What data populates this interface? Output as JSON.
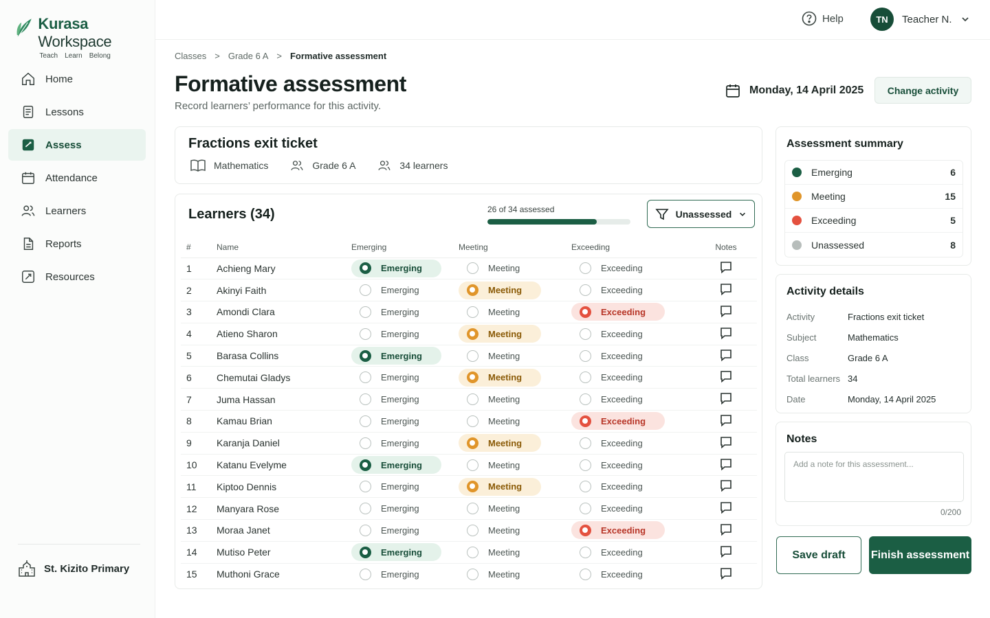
{
  "app": {
    "brand_bold": "Kurasa",
    "brand_light": " Workspace",
    "taglines": [
      "Teach",
      "Learn",
      "Belong"
    ]
  },
  "sidebar": {
    "items": [
      {
        "label": "Home",
        "icon": "home-icon"
      },
      {
        "label": "Lessons",
        "icon": "lessons-icon"
      },
      {
        "label": "Assess",
        "icon": "assess-icon",
        "active": true
      },
      {
        "label": "Attendance",
        "icon": "calendar-icon"
      },
      {
        "label": "Learners",
        "icon": "users-icon"
      },
      {
        "label": "Reports",
        "icon": "report-icon"
      },
      {
        "label": "Resources",
        "icon": "resources-icon"
      }
    ],
    "school": "St. Kizito Primary"
  },
  "topbar": {
    "help": "Help",
    "avatar_initials": "TN",
    "user_name": "Teacher N."
  },
  "breadcrumb": [
    "Classes",
    "Grade 6 A",
    "Formative assessment"
  ],
  "header": {
    "title": "Formative assessment",
    "subtitle": "Record learners’ performance for this activity.",
    "date": "Monday, 14 April 2025",
    "change_button": "Change activity"
  },
  "activity": {
    "title": "Fractions exit ticket",
    "subject": "Mathematics",
    "class": "Grade 6 A",
    "learners": "34 learners"
  },
  "learners_panel": {
    "title": "Learners (34)",
    "progress_text": "26 of 34 assessed",
    "progress_fraction": 0.7647,
    "filter_label": "Unassessed",
    "columns": [
      "#",
      "Name",
      "Emerging",
      "Meeting",
      "Exceeding",
      "Notes"
    ],
    "option_labels": {
      "emerging": "Emerging",
      "meeting": "Meeting",
      "exceeding": "Exceeding"
    },
    "rows": [
      {
        "n": "1",
        "name": "Achieng Mary",
        "level": "emerging"
      },
      {
        "n": "2",
        "name": "Akinyi Faith",
        "level": "meeting"
      },
      {
        "n": "3",
        "name": "Amondi Clara",
        "level": "exceeding"
      },
      {
        "n": "4",
        "name": "Atieno Sharon",
        "level": "meeting"
      },
      {
        "n": "5",
        "name": "Barasa Collins",
        "level": "emerging"
      },
      {
        "n": "6",
        "name": "Chemutai Gladys",
        "level": "meeting"
      },
      {
        "n": "7",
        "name": "Juma Hassan",
        "level": ""
      },
      {
        "n": "8",
        "name": "Kamau Brian",
        "level": "exceeding"
      },
      {
        "n": "9",
        "name": "Karanja Daniel",
        "level": "meeting"
      },
      {
        "n": "10",
        "name": "Katanu Evelyme",
        "level": "emerging"
      },
      {
        "n": "11",
        "name": "Kiptoo Dennis",
        "level": "meeting"
      },
      {
        "n": "12",
        "name": "Manyara Rose",
        "level": ""
      },
      {
        "n": "13",
        "name": "Moraa Janet",
        "level": "exceeding"
      },
      {
        "n": "14",
        "name": "Mutiso Peter",
        "level": "emerging"
      },
      {
        "n": "15",
        "name": "Muthoni Grace",
        "level": ""
      }
    ]
  },
  "summary": {
    "title": "Assessment summary",
    "items": [
      {
        "label": "Emerging",
        "value": "6",
        "color": "#1b5e44"
      },
      {
        "label": "Meeting",
        "value": "15",
        "color": "#e0952a"
      },
      {
        "label": "Exceeding",
        "value": "5",
        "color": "#e4513f"
      },
      {
        "label": "Unassessed",
        "value": "8",
        "color": "#b7bdbb"
      }
    ]
  },
  "details": {
    "title": "Activity details",
    "rows": [
      {
        "k": "Activity",
        "v": "Fractions exit ticket"
      },
      {
        "k": "Subject",
        "v": "Mathematics"
      },
      {
        "k": "Class",
        "v": "Grade 6 A"
      },
      {
        "k": "Total learners",
        "v": "34"
      },
      {
        "k": "Date",
        "v": "Monday, 14 April 2025"
      }
    ]
  },
  "notes": {
    "title": "Notes",
    "placeholder": "Add a note for this assessment...",
    "counter": "0/200"
  },
  "actions": {
    "save_draft": "Save draft",
    "finish": "Finish assessment"
  }
}
